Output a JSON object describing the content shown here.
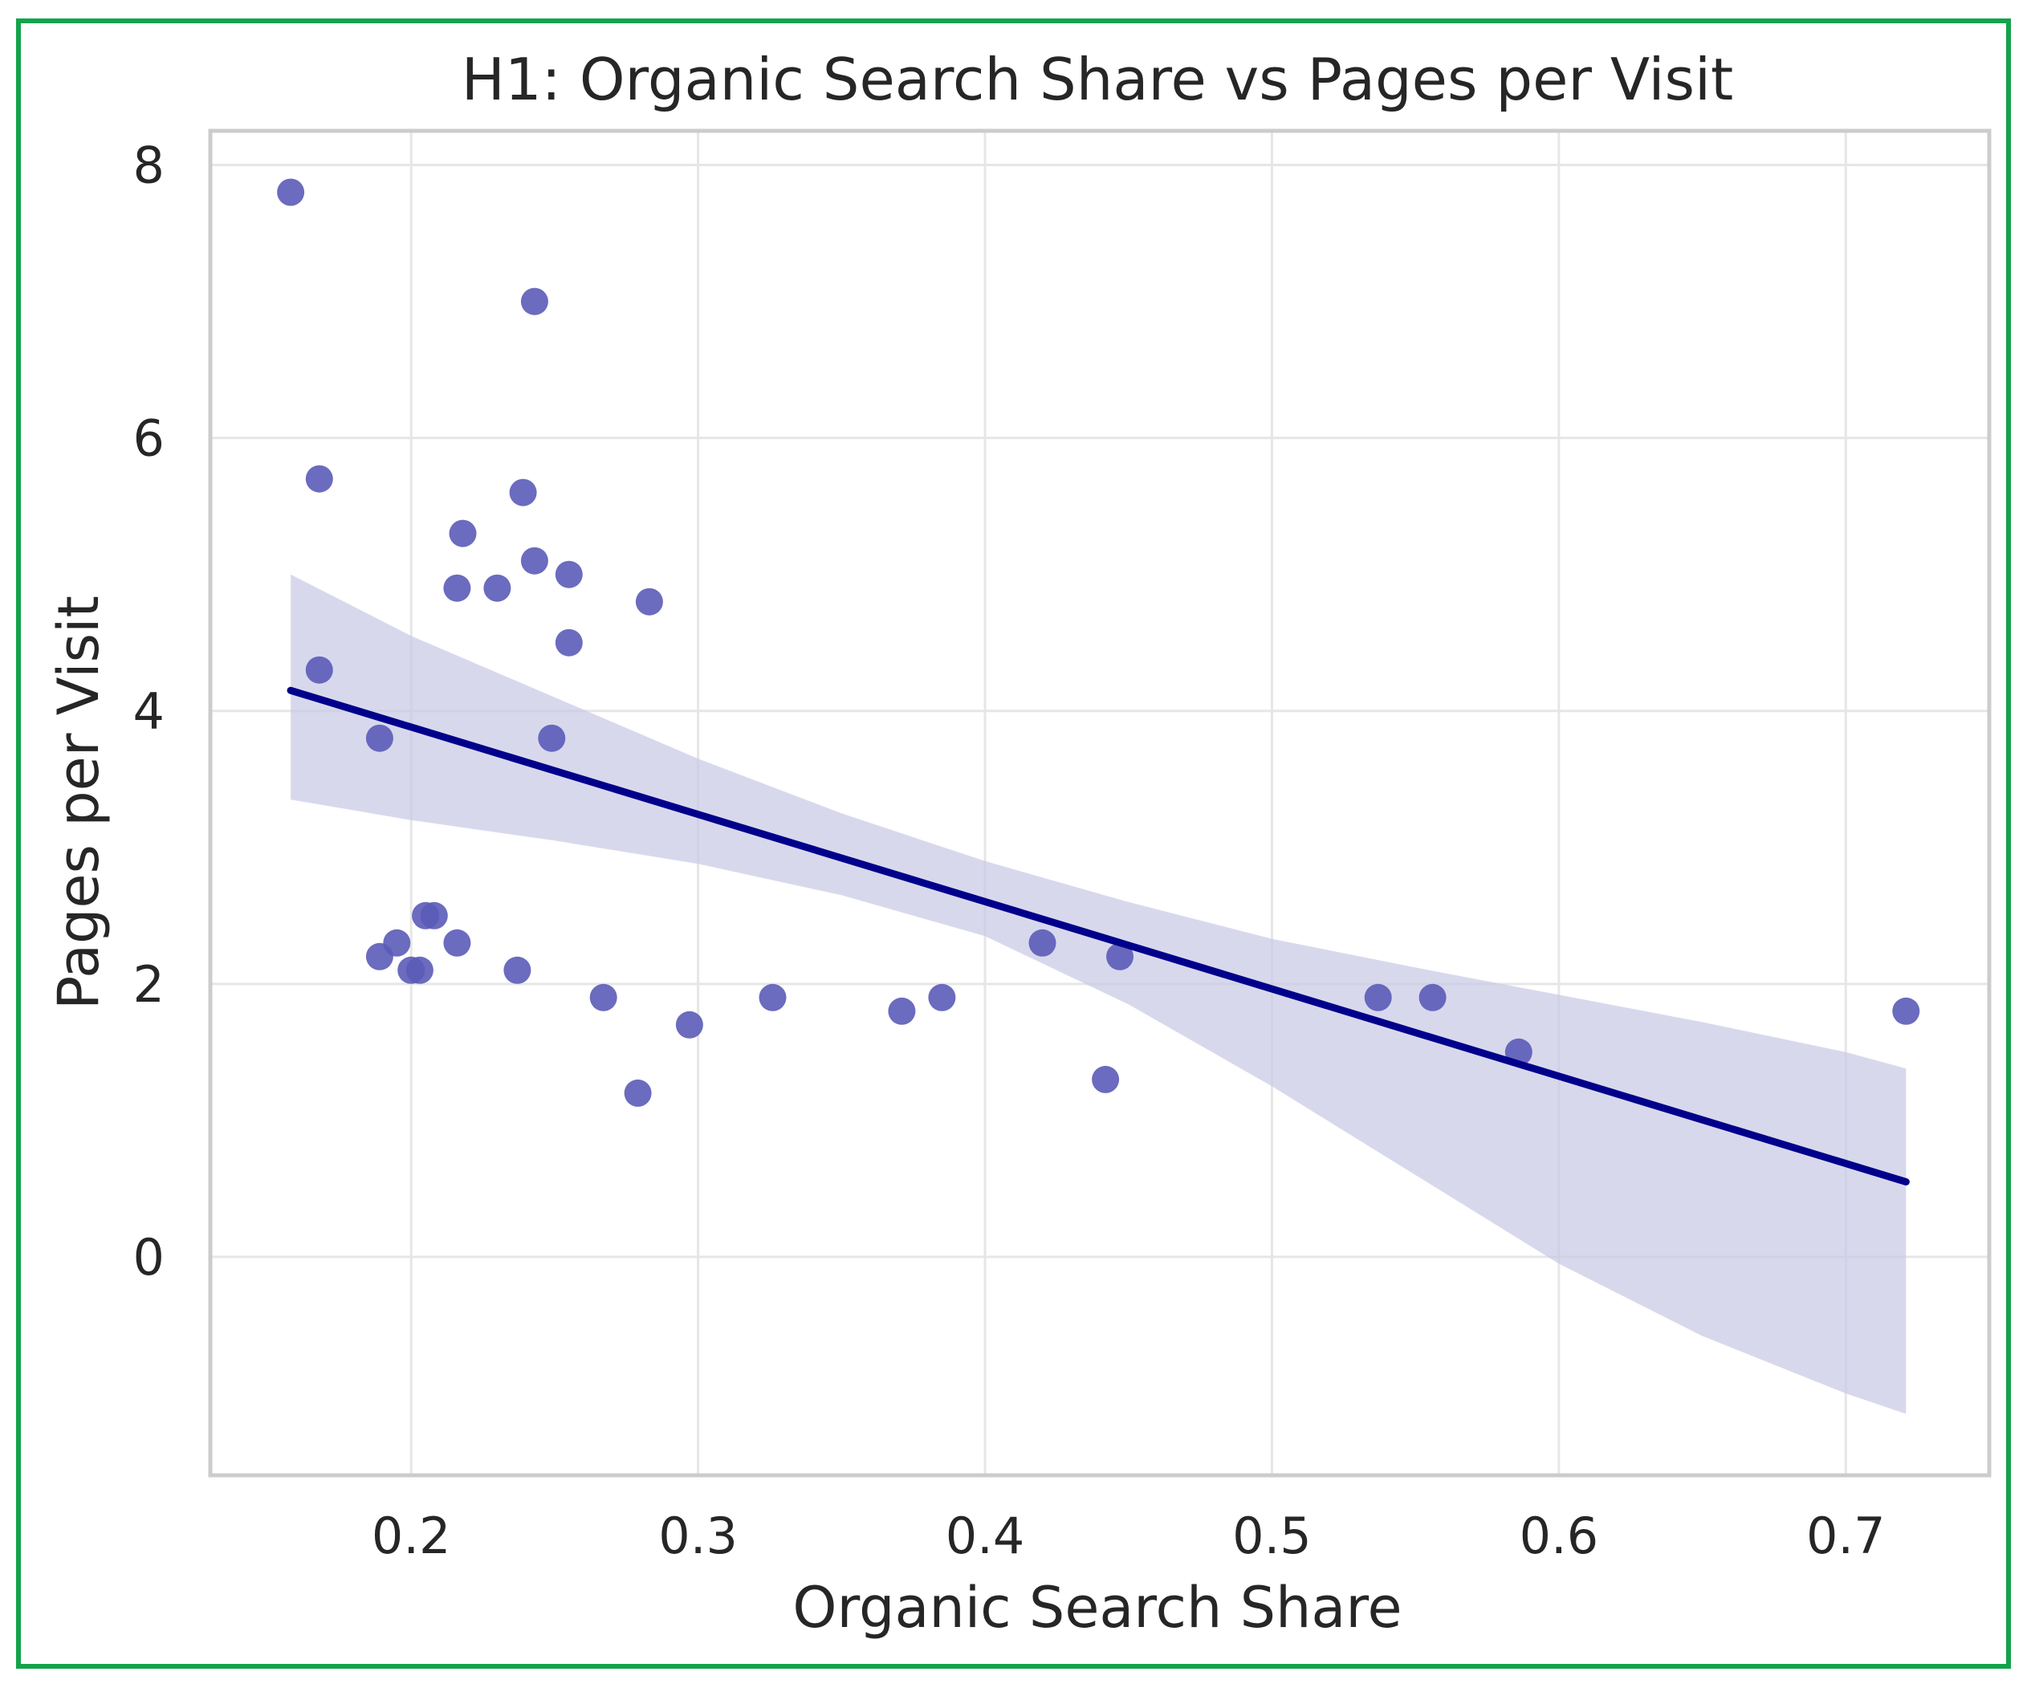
{
  "chart_data": {
    "type": "scatter",
    "title": "H1: Organic Search Share vs Pages per Visit",
    "xlabel": "Organic Search Share",
    "ylabel": "Pages per Visit",
    "xlim": [
      0.13,
      0.75
    ],
    "ylim": [
      -1.6,
      8.25
    ],
    "xticks": [
      0.2,
      0.3,
      0.4,
      0.5,
      0.6,
      0.7
    ],
    "xtick_labels": [
      "0.2",
      "0.3",
      "0.4",
      "0.5",
      "0.6",
      "0.7"
    ],
    "yticks": [
      0,
      2,
      4,
      6,
      8
    ],
    "ytick_labels": [
      "0",
      "2",
      "4",
      "6",
      "8"
    ],
    "grid": true,
    "colors": {
      "points": "#5b5bb8",
      "regression_line": "#00008b",
      "confidence_band": "#c7c7e6",
      "grid": "#e6e6e6",
      "spine": "#cccccc",
      "frame_border": "#13a34b"
    },
    "points": [
      {
        "x": 0.158,
        "y": 7.8
      },
      {
        "x": 0.243,
        "y": 7.0
      },
      {
        "x": 0.168,
        "y": 5.7
      },
      {
        "x": 0.239,
        "y": 5.6
      },
      {
        "x": 0.218,
        "y": 5.3
      },
      {
        "x": 0.243,
        "y": 5.1
      },
      {
        "x": 0.255,
        "y": 5.0
      },
      {
        "x": 0.216,
        "y": 4.9
      },
      {
        "x": 0.23,
        "y": 4.9
      },
      {
        "x": 0.283,
        "y": 4.8
      },
      {
        "x": 0.255,
        "y": 4.5
      },
      {
        "x": 0.168,
        "y": 4.3
      },
      {
        "x": 0.189,
        "y": 3.8
      },
      {
        "x": 0.249,
        "y": 3.8
      },
      {
        "x": 0.205,
        "y": 2.5
      },
      {
        "x": 0.208,
        "y": 2.5
      },
      {
        "x": 0.195,
        "y": 2.3
      },
      {
        "x": 0.216,
        "y": 2.3
      },
      {
        "x": 0.189,
        "y": 2.2
      },
      {
        "x": 0.2,
        "y": 2.1
      },
      {
        "x": 0.203,
        "y": 2.1
      },
      {
        "x": 0.237,
        "y": 2.1
      },
      {
        "x": 0.267,
        "y": 1.9
      },
      {
        "x": 0.297,
        "y": 1.7
      },
      {
        "x": 0.279,
        "y": 1.2
      },
      {
        "x": 0.326,
        "y": 1.9
      },
      {
        "x": 0.371,
        "y": 1.8
      },
      {
        "x": 0.385,
        "y": 1.9
      },
      {
        "x": 0.42,
        "y": 2.3
      },
      {
        "x": 0.447,
        "y": 2.2
      },
      {
        "x": 0.442,
        "y": 1.3
      },
      {
        "x": 0.537,
        "y": 1.9
      },
      {
        "x": 0.556,
        "y": 1.9
      },
      {
        "x": 0.586,
        "y": 1.5
      },
      {
        "x": 0.721,
        "y": 1.8
      }
    ],
    "regression": {
      "x": [
        0.158,
        0.721
      ],
      "y": [
        4.15,
        0.55
      ]
    },
    "confidence_band": {
      "x": [
        0.158,
        0.2,
        0.25,
        0.3,
        0.35,
        0.4,
        0.45,
        0.5,
        0.55,
        0.6,
        0.65,
        0.7,
        0.721
      ],
      "upper": [
        5.0,
        4.55,
        4.1,
        3.65,
        3.25,
        2.9,
        2.6,
        2.33,
        2.12,
        1.92,
        1.72,
        1.5,
        1.38
      ],
      "lower": [
        3.35,
        3.2,
        3.05,
        2.88,
        2.65,
        2.35,
        1.85,
        1.25,
        0.6,
        -0.05,
        -0.58,
        -1.0,
        -1.15
      ]
    }
  }
}
